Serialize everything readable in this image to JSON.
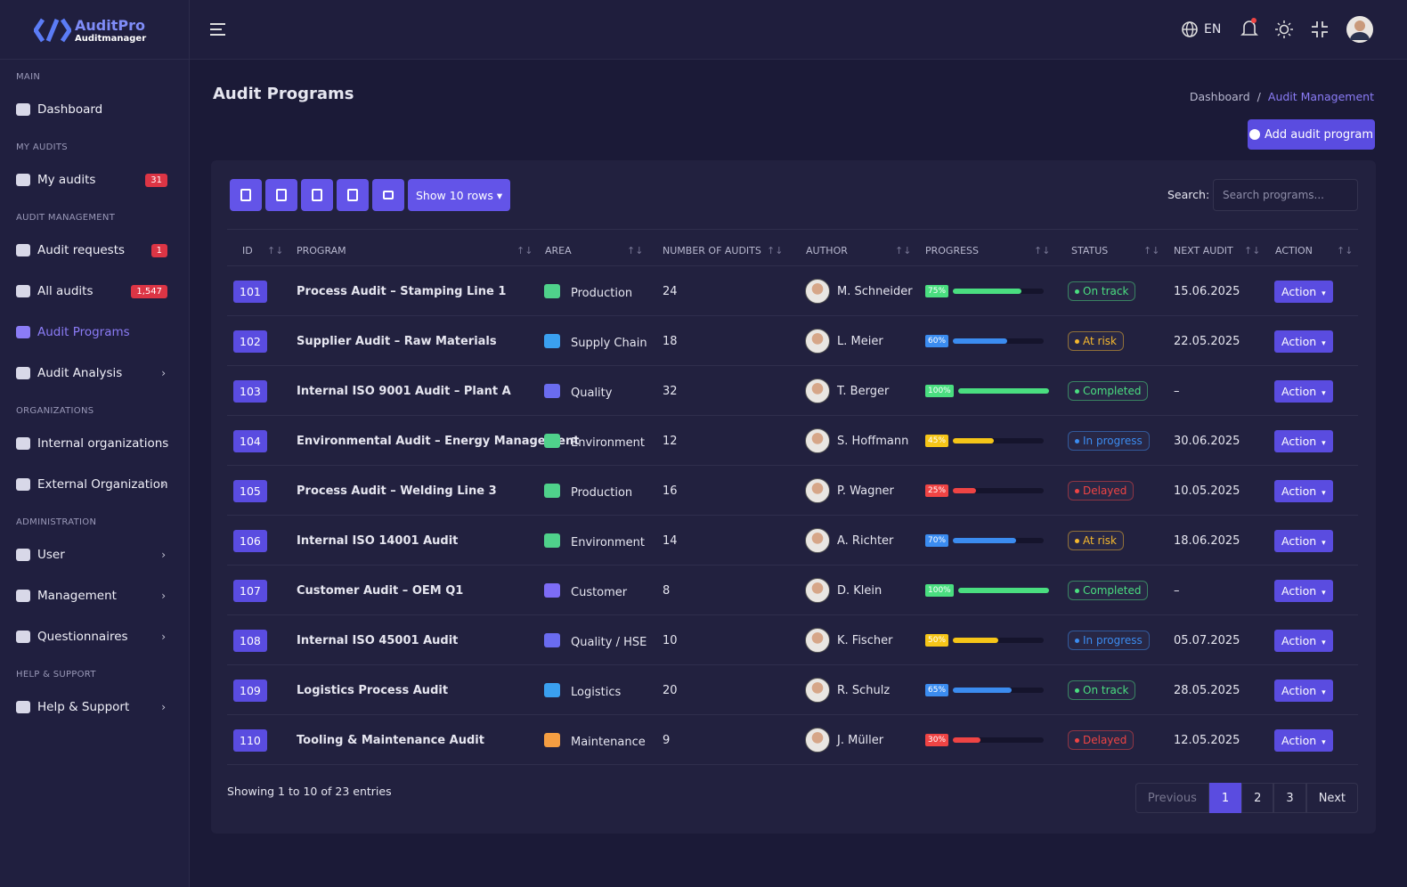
{
  "brand": {
    "name": "AuditPro",
    "subtitle": "Auditmanager"
  },
  "topbar": {
    "language": "EN"
  },
  "sidebar": {
    "sections": [
      {
        "title": "MAIN",
        "items": [
          {
            "label": "Dashboard"
          }
        ]
      },
      {
        "title": "MY AUDITS",
        "items": [
          {
            "label": "My audits",
            "badge": "31"
          }
        ]
      },
      {
        "title": "AUDIT MANAGEMENT",
        "items": [
          {
            "label": "Audit requests",
            "badge": "1"
          },
          {
            "label": "All audits",
            "badge": "1,547"
          },
          {
            "label": "Audit Programs",
            "active": true
          },
          {
            "label": "Audit Analysis",
            "submenu": true
          }
        ]
      },
      {
        "title": "ORGANIZATIONS",
        "items": [
          {
            "label": "Internal organizations"
          },
          {
            "label": "External Organization",
            "submenu": true
          }
        ]
      },
      {
        "title": "ADMINISTRATION",
        "items": [
          {
            "label": "User",
            "submenu": true
          },
          {
            "label": "Management",
            "submenu": true
          },
          {
            "label": "Questionnaires",
            "submenu": true
          }
        ]
      },
      {
        "title": "HELP & SUPPORT",
        "items": [
          {
            "label": "Help & Support",
            "submenu": true
          }
        ]
      }
    ]
  },
  "page": {
    "title": "Audit Programs",
    "breadcrumb": [
      "Dashboard",
      "Audit Management"
    ],
    "add_button": "Add audit program"
  },
  "toolbar": {
    "rows_button": "Show 10 rows",
    "search_label": "Search:",
    "search_placeholder": "Search programs..."
  },
  "table": {
    "columns": [
      "ID",
      "PROGRAM",
      "AREA",
      "NUMBER OF AUDITS",
      "AUTHOR",
      "PROGRESS",
      "STATUS",
      "NEXT AUDIT",
      "ACTION"
    ],
    "rows": [
      {
        "id": 101,
        "program": "Process Audit – Stamping Line 1",
        "area": "Production",
        "audits": 24,
        "author": "M. Schneider",
        "progress": {
          "value": 75,
          "label": "75%",
          "color": "#4ade80"
        },
        "status": {
          "label": "On track",
          "color": "#4ade80"
        },
        "next_audit": "15.06.2025",
        "action": "Action"
      },
      {
        "id": 102,
        "program": "Supplier Audit – Raw Materials",
        "area": "Supply Chain",
        "audits": 18,
        "author": "L. Meier",
        "progress": {
          "value": 60,
          "label": "60%",
          "color": "#3b8cf0"
        },
        "status": {
          "label": "At risk",
          "color": "#f5b82e"
        },
        "next_audit": "22.05.2025",
        "action": "Action"
      },
      {
        "id": 103,
        "program": "Internal ISO 9001 Audit – Plant A",
        "area": "Quality",
        "audits": 32,
        "author": "T. Berger",
        "progress": {
          "value": 100,
          "label": "100%",
          "color": "#4ade80"
        },
        "status": {
          "label": "Completed",
          "color": "#4ade80"
        },
        "next_audit": "–",
        "action": "Action"
      },
      {
        "id": 104,
        "program": "Environmental Audit – Energy Management",
        "area": "Environment",
        "audits": 12,
        "author": "S. Hoffmann",
        "progress": {
          "value": 45,
          "label": "45%",
          "color": "#f5c518"
        },
        "status": {
          "label": "In progress",
          "color": "#3b8cf0"
        },
        "next_audit": "30.06.2025",
        "action": "Action"
      },
      {
        "id": 105,
        "program": "Process Audit – Welding Line 3",
        "area": "Production",
        "audits": 16,
        "author": "P. Wagner",
        "progress": {
          "value": 25,
          "label": "25%",
          "color": "#ef4444"
        },
        "status": {
          "label": "Delayed",
          "color": "#ef4444"
        },
        "next_audit": "10.05.2025",
        "action": "Action"
      },
      {
        "id": 106,
        "program": "Internal ISO 14001 Audit",
        "area": "Environment",
        "audits": 14,
        "author": "A. Richter",
        "progress": {
          "value": 70,
          "label": "70%",
          "color": "#3b8cf0"
        },
        "status": {
          "label": "At risk",
          "color": "#f5b82e"
        },
        "next_audit": "18.06.2025",
        "action": "Action"
      },
      {
        "id": 107,
        "program": "Customer Audit – OEM Q1",
        "area": "Customer",
        "audits": 8,
        "author": "D. Klein",
        "progress": {
          "value": 100,
          "label": "100%",
          "color": "#4ade80"
        },
        "status": {
          "label": "Completed",
          "color": "#4ade80"
        },
        "next_audit": "–",
        "action": "Action"
      },
      {
        "id": 108,
        "program": "Internal ISO 45001 Audit",
        "area": "Quality / HSE",
        "audits": 10,
        "author": "K. Fischer",
        "progress": {
          "value": 50,
          "label": "50%",
          "color": "#f5c518"
        },
        "status": {
          "label": "In progress",
          "color": "#3b8cf0"
        },
        "next_audit": "05.07.2025",
        "action": "Action"
      },
      {
        "id": 109,
        "program": "Logistics Process Audit",
        "area": "Logistics",
        "audits": 20,
        "author": "R. Schulz",
        "progress": {
          "value": 65,
          "label": "65%",
          "color": "#3b8cf0"
        },
        "status": {
          "label": "On track",
          "color": "#4ade80"
        },
        "next_audit": "28.05.2025",
        "action": "Action"
      },
      {
        "id": 110,
        "program": "Tooling & Maintenance Audit",
        "area": "Maintenance",
        "audits": 9,
        "author": "J. Müller",
        "progress": {
          "value": 30,
          "label": "30%",
          "color": "#ef4444"
        },
        "status": {
          "label": "Delayed",
          "color": "#ef4444"
        },
        "next_audit": "12.05.2025",
        "action": "Action"
      }
    ]
  },
  "footer": {
    "info": "Showing 1 to 10 of 23 entries",
    "previous": "Previous",
    "pages": [
      1,
      2,
      3
    ],
    "current": 1,
    "next": "Next"
  }
}
